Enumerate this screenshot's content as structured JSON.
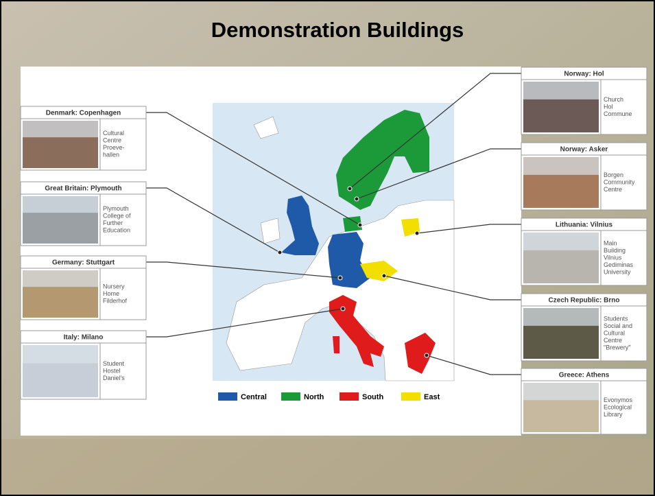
{
  "title": "Demonstration Buildings",
  "legend": [
    {
      "name": "Central",
      "color": "#1f5aa8"
    },
    {
      "name": "North",
      "color": "#1c9a3a"
    },
    {
      "name": "South",
      "color": "#e01b1b"
    },
    {
      "name": "East",
      "color": "#f2df00"
    }
  ],
  "buildings": [
    {
      "location": "Denmark: Copenhagen",
      "description": [
        "Cultural",
        "Centre",
        "Proeve-",
        "hallen"
      ]
    },
    {
      "location": "Great Britain: Plymouth",
      "description": [
        "Plymouth",
        "College of",
        "Further",
        "Education"
      ]
    },
    {
      "location": "Germany: Stuttgart",
      "description": [
        "Nursery",
        "Home",
        "Filderhof"
      ]
    },
    {
      "location": "Italy: Milano",
      "description": [
        "Student",
        "Hostel",
        "Daniel's"
      ]
    },
    {
      "location": "Norway: Hol",
      "description": [
        "Church",
        "Hol",
        "Commune"
      ]
    },
    {
      "location": "Norway: Asker",
      "description": [
        "Borgen",
        "Community",
        "Centre"
      ]
    },
    {
      "location": "Lithuania: Vilnius",
      "description": [
        "Main",
        "Building",
        "Vilnius",
        "Gediminas",
        "University"
      ]
    },
    {
      "location": "Czech Republic: Brno",
      "description": [
        "Students",
        "Social and",
        "Cultural",
        "Centre",
        "\"Brewery\""
      ]
    },
    {
      "location": "Greece: Athens",
      "description": [
        "Evonymos",
        "Ecological",
        "Library"
      ]
    }
  ]
}
